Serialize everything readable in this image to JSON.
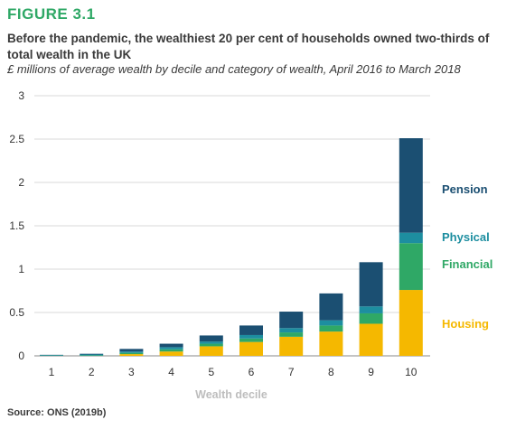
{
  "figure_label": "FIGURE 3.1",
  "title": "Before the pandemic, the wealthiest 20 per cent of households owned two-thirds of total wealth in the UK",
  "subtitle": "£ millions of average wealth by decile and category of wealth, April 2016 to March 2018",
  "source": "Source: ONS (2019b)",
  "chart_data": {
    "type": "bar",
    "stacked": true,
    "categories": [
      "1",
      "2",
      "3",
      "4",
      "5",
      "6",
      "7",
      "8",
      "9",
      "10"
    ],
    "xlabel": "Wealth decile",
    "ylabel": "",
    "ylim": [
      0,
      3
    ],
    "yticks": [
      "0",
      "0.5",
      "1",
      "1.5",
      "2",
      "2.5",
      "3"
    ],
    "grid": "horizontal",
    "legend_placement": "right",
    "series": [
      {
        "name": "Housing",
        "color": "#f5b800",
        "values": [
          0.0,
          0.0,
          0.02,
          0.05,
          0.11,
          0.16,
          0.22,
          0.28,
          0.37,
          0.76
        ]
      },
      {
        "name": "Financial",
        "color": "#2fa866",
        "values": [
          0.003,
          0.006,
          0.015,
          0.025,
          0.03,
          0.04,
          0.05,
          0.07,
          0.12,
          0.54
        ]
      },
      {
        "name": "Physical",
        "color": "#1d8ea0",
        "values": [
          0.007,
          0.01,
          0.015,
          0.025,
          0.025,
          0.04,
          0.05,
          0.06,
          0.08,
          0.12
        ]
      },
      {
        "name": "Pension",
        "color": "#1b4f72",
        "values": [
          0.002,
          0.008,
          0.03,
          0.04,
          0.07,
          0.11,
          0.19,
          0.31,
          0.51,
          1.09
        ]
      }
    ]
  }
}
